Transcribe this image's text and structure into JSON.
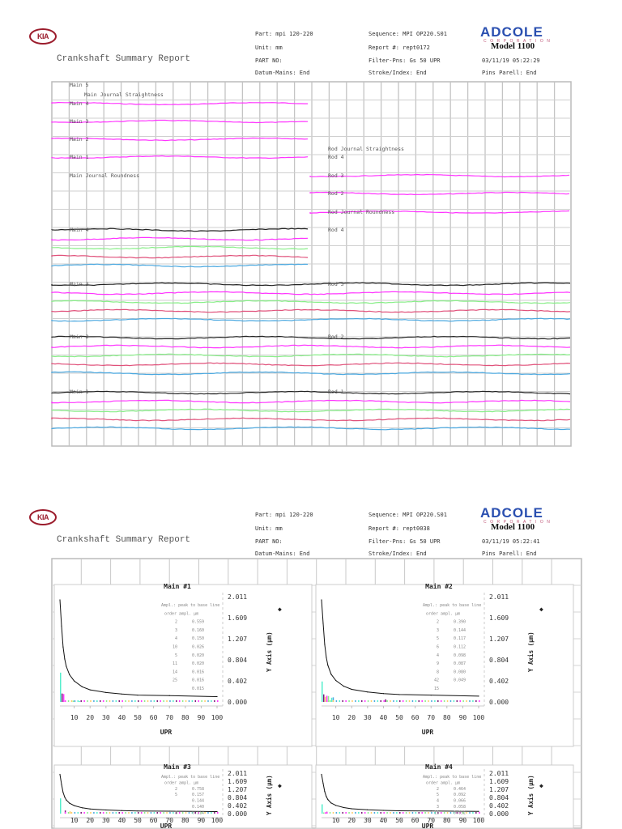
{
  "pages": [
    {
      "logo": "KIA",
      "title": "Crankshaft Summary Report",
      "part": "Part: mpi 120-220",
      "unit": "Unit: mm",
      "part_no": "PART NO:",
      "datum": "Datum-Mains: End",
      "sequence": "Sequence: MPI OP220.S01",
      "report": "Report #: rept0172",
      "filter": "Filter-Pns: Gs 50 UPR",
      "stroke": "Stroke/Index: End",
      "brand": "ADCOLE",
      "brand_sub": "CORPORATION",
      "model": "Model 1100",
      "datetime": "03/11/19   05:22:29",
      "pins": "Pins Parell: End"
    },
    {
      "logo": "KIA",
      "title": "Crankshaft Summary Report",
      "part": "Part: mpi 120-220",
      "unit": "Unit: mm",
      "part_no": "PART NO:",
      "datum": "Datum-Mains: End",
      "sequence": "Sequence: MPI OP220.S01",
      "report": "Report #: rept0038",
      "filter": "Filter-Pns: Gs 50 UPR",
      "stroke": "Stroke/Index: End",
      "brand": "ADCOLE",
      "brand_sub": "CORPORATION",
      "model": "Model 1100",
      "datetime": "03/11/19   05:22:41",
      "pins": "Pins Parell: End"
    }
  ],
  "summary": {
    "left_labels": [
      "Main 5",
      "Main Journal Straightness",
      "Main 4",
      "Main 3",
      "Main 2",
      "Main 1",
      "Main Journal Roundness",
      "Main 4",
      "Main 3",
      "Main 2",
      "Main 1"
    ],
    "right_labels": [
      "Rod Journal Straightness",
      "Rod 4",
      "Rod 3",
      "Rod 2",
      "Rod Journal Roundness",
      "Rod 4",
      "Rod 3",
      "Rod 2",
      "Rod 1"
    ],
    "trace_colors": {
      "straightness": "#ff33ff",
      "roundness": [
        "#222222",
        "#ff33ff",
        "#88ee88",
        "#e0507a",
        "#4aa8e0"
      ]
    }
  },
  "chart_data": [
    {
      "type": "line+bar",
      "title": "Main #1",
      "xlabel": "UPR",
      "ylabel": "Y Axis (µm)",
      "xticks": [
        "10",
        "20",
        "30",
        "40",
        "50",
        "60",
        "70",
        "80",
        "90",
        "100"
      ],
      "yticks": [
        "2.011",
        "1.609",
        "1.207",
        "0.804",
        "0.402",
        "0.000"
      ],
      "xlim": [
        1,
        100
      ],
      "ylim": [
        0,
        2.011
      ],
      "curve": {
        "x": [
          1,
          2,
          3,
          4,
          5,
          7,
          10,
          15,
          20,
          30,
          40,
          50,
          70,
          100
        ],
        "y": [
          1.95,
          1.45,
          1.05,
          0.82,
          0.68,
          0.52,
          0.4,
          0.29,
          0.23,
          0.18,
          0.15,
          0.13,
          0.12,
          0.1
        ]
      },
      "legend_header": [
        "Ampl.: peak to base line",
        "order   ampl.  µm"
      ],
      "legend_rows": [
        [
          "2",
          "0.559"
        ],
        [
          "3",
          "0.160"
        ],
        [
          "4",
          "0.150"
        ],
        [
          "10",
          "0.026"
        ],
        [
          "5",
          "0.020"
        ],
        [
          "11",
          "0.020"
        ],
        [
          "14",
          "0.016"
        ],
        [
          "25",
          "0.016"
        ],
        [
          "",
          "0.015"
        ]
      ]
    },
    {
      "type": "line+bar",
      "title": "Main #2",
      "xlabel": "UPR",
      "ylabel": "Y Axis (µm)",
      "xticks": [
        "10",
        "20",
        "30",
        "40",
        "50",
        "60",
        "70",
        "80",
        "90",
        "100"
      ],
      "yticks": [
        "2.011",
        "1.609",
        "1.207",
        "0.804",
        "0.402",
        "0.000"
      ],
      "xlim": [
        1,
        100
      ],
      "ylim": [
        0,
        2.011
      ],
      "curve": {
        "x": [
          1,
          2,
          3,
          4,
          5,
          7,
          10,
          15,
          20,
          30,
          40,
          50,
          70,
          100
        ],
        "y": [
          1.95,
          1.5,
          1.1,
          0.85,
          0.7,
          0.53,
          0.41,
          0.3,
          0.24,
          0.19,
          0.16,
          0.14,
          0.13,
          0.11
        ]
      },
      "legend_header": [
        "Ampl.: peak to base line",
        "order   ampl.  µm"
      ],
      "legend_rows": [
        [
          "2",
          "0.390"
        ],
        [
          "3",
          "0.144"
        ],
        [
          "5",
          "0.117"
        ],
        [
          "6",
          "0.112"
        ],
        [
          "4",
          "0.098"
        ],
        [
          "9",
          "0.087"
        ],
        [
          "8",
          "0.080"
        ],
        [
          "42",
          "0.049"
        ],
        [
          "15",
          ""
        ]
      ]
    },
    {
      "type": "line+bar",
      "title": "Main #3",
      "xlabel": "UPR",
      "ylabel": "Y Axis (µm)",
      "xticks": [
        "10",
        "20",
        "30",
        "40",
        "50",
        "60",
        "70",
        "80",
        "90",
        "100"
      ],
      "yticks": [
        "2.011",
        "1.609",
        "1.207",
        "0.804",
        "0.402",
        "0.000"
      ],
      "xlim": [
        1,
        100
      ],
      "ylim": [
        0,
        2.011
      ],
      "curve": {
        "x": [
          1,
          2,
          3,
          4,
          5,
          7,
          10,
          15,
          20,
          30,
          40,
          50,
          70,
          100
        ],
        "y": [
          1.95,
          1.45,
          1.05,
          0.82,
          0.68,
          0.52,
          0.4,
          0.29,
          0.23,
          0.18,
          0.15,
          0.13,
          0.12,
          0.1
        ]
      },
      "legend_header": [
        "Ampl.: peak to base line",
        "order   ampl.  µm"
      ],
      "legend_rows": [
        [
          "2",
          "0.758"
        ],
        [
          "5",
          "0.157"
        ],
        [
          "",
          "0.144"
        ],
        [
          "",
          "0.140"
        ],
        [
          "8",
          "0.114"
        ]
      ]
    },
    {
      "type": "line+bar",
      "title": "Main #4",
      "xlabel": "UPR",
      "ylabel": "Y Axis (µm)",
      "xticks": [
        "10",
        "20",
        "30",
        "40",
        "50",
        "60",
        "70",
        "80",
        "90",
        "100"
      ],
      "yticks": [
        "2.011",
        "1.609",
        "1.207",
        "0.804",
        "0.402",
        "0.000"
      ],
      "xlim": [
        1,
        100
      ],
      "ylim": [
        0,
        2.011
      ],
      "curve": {
        "x": [
          1,
          2,
          3,
          4,
          5,
          7,
          10,
          15,
          20,
          30,
          40,
          50,
          70,
          100
        ],
        "y": [
          1.95,
          1.5,
          1.1,
          0.85,
          0.7,
          0.53,
          0.41,
          0.3,
          0.24,
          0.19,
          0.16,
          0.14,
          0.13,
          0.11
        ]
      },
      "legend_header": [
        "Ampl.: peak to base line",
        "order   ampl.  µm"
      ],
      "legend_rows": [
        [
          "2",
          "0.464"
        ],
        [
          "5",
          "0.092"
        ],
        [
          "4",
          "0.066"
        ],
        [
          "3",
          "0.058"
        ],
        [
          "11",
          "0.052"
        ]
      ]
    }
  ]
}
